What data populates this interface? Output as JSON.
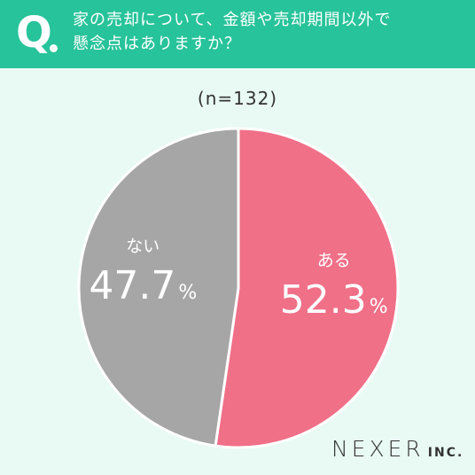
{
  "header": {
    "q_mark": "Q",
    "question_line1": "家の売却について、金額や売却期間以外で",
    "question_line2": "懸念点はありますか？"
  },
  "sample_size": "(n=132)",
  "chart_data": {
    "type": "pie",
    "title": "家の売却について、金額や売却期間以外で懸念点はありますか？",
    "n": 132,
    "slices": [
      {
        "label": "ある",
        "value": 52.3,
        "display": "52.3",
        "unit": "%",
        "color": "#f07088"
      },
      {
        "label": "ない",
        "value": 47.7,
        "display": "47.7",
        "unit": "%",
        "color": "#a6a6a6"
      }
    ]
  },
  "logo": {
    "main": "NEXER",
    "sub": "INC."
  },
  "colors": {
    "header": "#27c39a",
    "background": "#e9faf4",
    "slice_text": "#ffffff"
  }
}
